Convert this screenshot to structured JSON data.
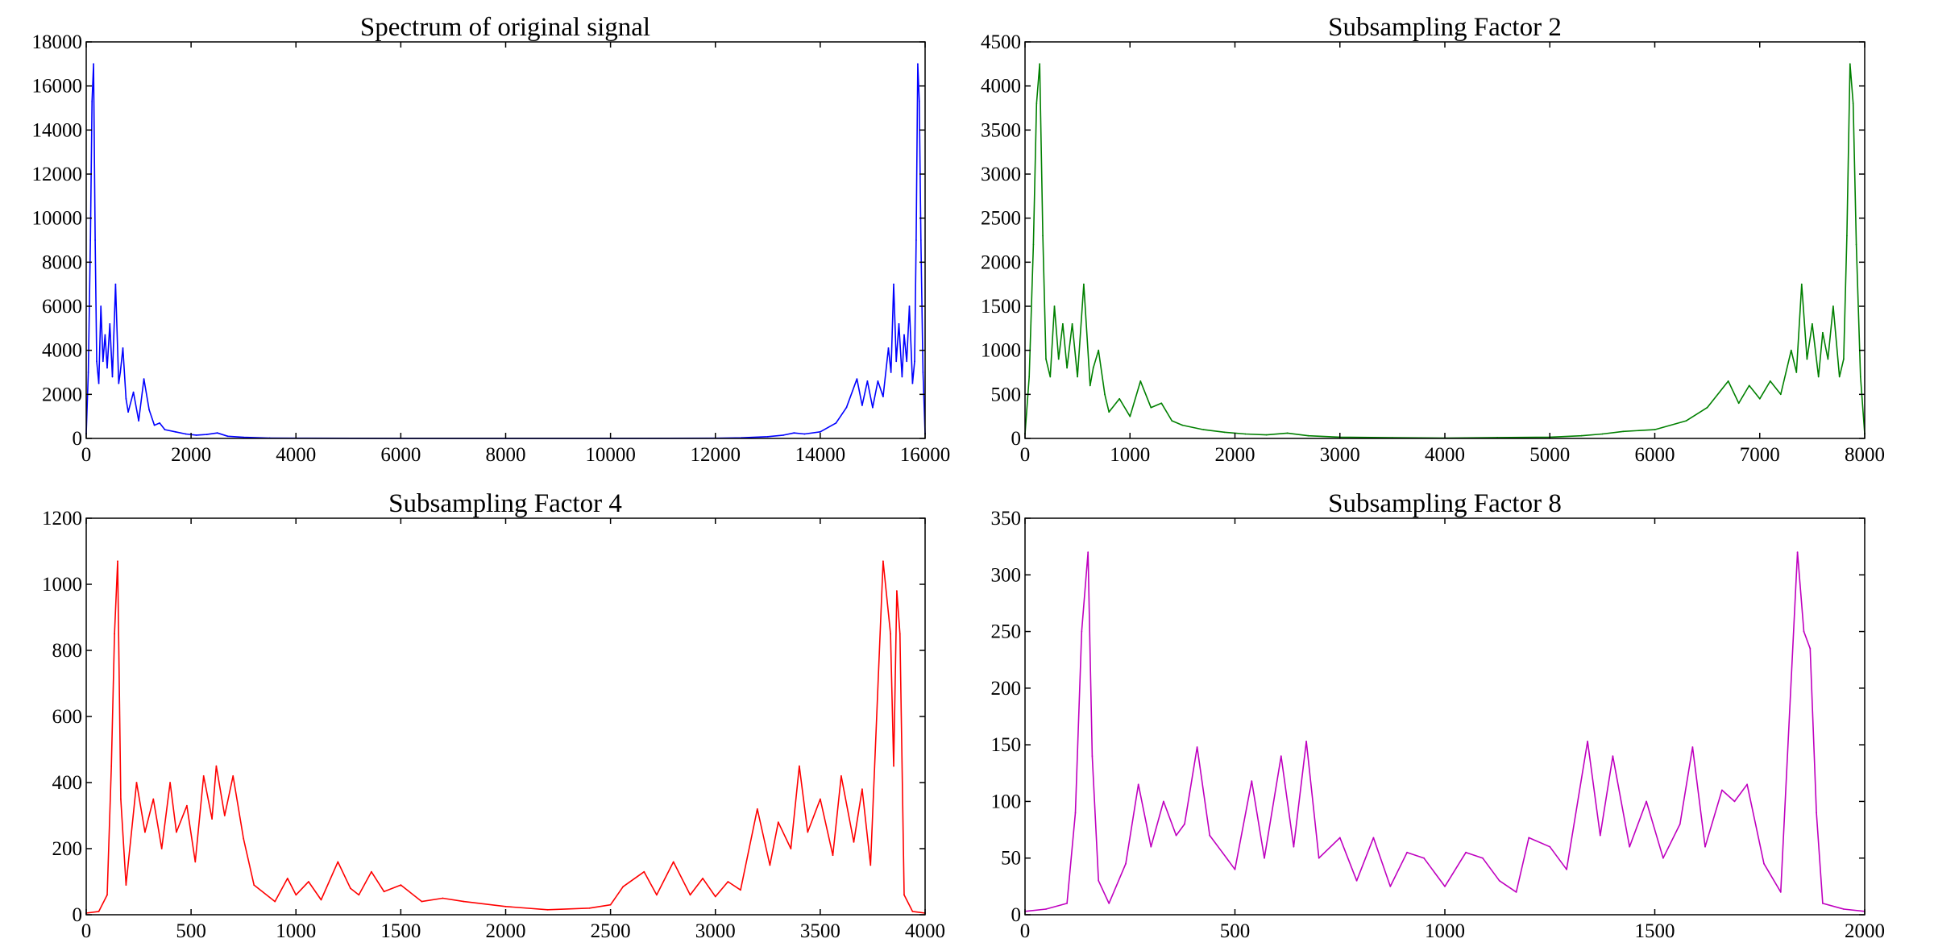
{
  "figure": {
    "layout": "2x2 grid",
    "background": "#ffffff"
  },
  "chart_data": [
    {
      "type": "line",
      "title": "Spectrum of original signal",
      "xlabel": "",
      "ylabel": "",
      "color": "#0000ff",
      "xlim": [
        0,
        16000
      ],
      "ylim": [
        0,
        18000
      ],
      "xticks": [
        "0",
        "2000",
        "4000",
        "6000",
        "8000",
        "10000",
        "12000",
        "14000",
        "16000"
      ],
      "yticks": [
        "0",
        "2000",
        "4000",
        "6000",
        "8000",
        "10000",
        "12000",
        "14000",
        "16000",
        "18000"
      ],
      "grid": false,
      "series": [
        {
          "x": [
            0,
            40,
            80,
            110,
            140,
            170,
            200,
            240,
            280,
            320,
            360,
            400,
            450,
            500,
            560,
            620,
            650,
            700,
            760,
            800,
            900,
            1000,
            1100,
            1200,
            1300,
            1400,
            1500,
            1700,
            1900,
            2100,
            2300,
            2500,
            2700,
            3000,
            3500,
            4000,
            6000,
            8000,
            10000,
            12000,
            12500,
            13000,
            13300,
            13500,
            13700,
            14000,
            14300,
            14500,
            14700,
            14800,
            14900,
            15000,
            15100,
            15200,
            15300,
            15350,
            15400,
            15450,
            15500,
            15560,
            15600,
            15650,
            15700,
            15760,
            15800,
            15830,
            15860,
            15890,
            15920,
            15960,
            16000
          ],
          "y": [
            200,
            3000,
            9000,
            15300,
            17000,
            9000,
            3500,
            2500,
            6000,
            3500,
            4700,
            3200,
            5200,
            2800,
            7000,
            2500,
            3000,
            4100,
            1800,
            1200,
            2100,
            800,
            2700,
            1300,
            600,
            700,
            400,
            300,
            200,
            150,
            180,
            250,
            100,
            50,
            20,
            10,
            5,
            5,
            5,
            10,
            30,
            80,
            150,
            250,
            200,
            300,
            700,
            1400,
            2700,
            1500,
            2600,
            1400,
            2600,
            1900,
            4100,
            3000,
            7000,
            3500,
            5200,
            2800,
            4700,
            3500,
            6000,
            2500,
            3500,
            9000,
            17000,
            15300,
            9000,
            3000,
            200
          ]
        }
      ]
    },
    {
      "type": "line",
      "title": "Subsampling Factor 2",
      "xlabel": "",
      "ylabel": "",
      "color": "#008000",
      "xlim": [
        0,
        8000
      ],
      "ylim": [
        0,
        4500
      ],
      "xticks": [
        "0",
        "1000",
        "2000",
        "3000",
        "4000",
        "5000",
        "6000",
        "7000",
        "8000"
      ],
      "yticks": [
        "0",
        "500",
        "1000",
        "1500",
        "2000",
        "2500",
        "3000",
        "3500",
        "4000",
        "4500"
      ],
      "grid": false,
      "series": [
        {
          "x": [
            0,
            40,
            80,
            110,
            140,
            170,
            200,
            240,
            280,
            320,
            360,
            400,
            450,
            500,
            560,
            620,
            650,
            700,
            760,
            800,
            900,
            1000,
            1100,
            1200,
            1300,
            1400,
            1500,
            1700,
            1900,
            2100,
            2300,
            2500,
            2700,
            3000,
            3500,
            4000,
            4500,
            5000,
            5300,
            5500,
            5700,
            6000,
            6300,
            6500,
            6700,
            6800,
            6900,
            7000,
            7100,
            7200,
            7300,
            7350,
            7400,
            7450,
            7500,
            7560,
            7600,
            7650,
            7700,
            7760,
            7800,
            7830,
            7860,
            7890,
            7920,
            7960,
            8000
          ],
          "y": [
            50,
            700,
            2200,
            3800,
            4250,
            2300,
            900,
            700,
            1500,
            900,
            1300,
            800,
            1300,
            700,
            1750,
            600,
            800,
            1000,
            500,
            300,
            450,
            250,
            650,
            350,
            400,
            200,
            150,
            100,
            70,
            50,
            40,
            60,
            30,
            15,
            8,
            5,
            10,
            15,
            30,
            50,
            80,
            100,
            200,
            350,
            650,
            400,
            600,
            450,
            650,
            500,
            1000,
            750,
            1750,
            900,
            1300,
            700,
            1200,
            900,
            1500,
            700,
            900,
            2300,
            4250,
            3800,
            2200,
            700,
            50
          ]
        }
      ]
    },
    {
      "type": "line",
      "title": "Subsampling Factor 4",
      "xlabel": "",
      "ylabel": "",
      "color": "#ff0000",
      "xlim": [
        0,
        4000
      ],
      "ylim": [
        0,
        1200
      ],
      "xticks": [
        "0",
        "500",
        "1000",
        "1500",
        "2000",
        "2500",
        "3000",
        "3500",
        "4000"
      ],
      "yticks": [
        "0",
        "200",
        "400",
        "600",
        "800",
        "1000",
        "1200"
      ],
      "grid": false,
      "series": [
        {
          "x": [
            0,
            60,
            100,
            120,
            135,
            150,
            165,
            190,
            240,
            280,
            320,
            360,
            400,
            430,
            480,
            520,
            560,
            600,
            620,
            660,
            700,
            750,
            800,
            900,
            960,
            1000,
            1060,
            1120,
            1200,
            1260,
            1300,
            1360,
            1420,
            1500,
            1600,
            1700,
            1800,
            2000,
            2200,
            2400,
            2500,
            2560,
            2660,
            2720,
            2800,
            2880,
            2940,
            3000,
            3060,
            3120,
            3200,
            3260,
            3300,
            3360,
            3400,
            3440,
            3500,
            3560,
            3600,
            3660,
            3700,
            3740,
            3800,
            3835,
            3850,
            3865,
            3880,
            3900,
            3940,
            4000
          ],
          "y": [
            5,
            10,
            60,
            450,
            850,
            1070,
            350,
            90,
            400,
            250,
            350,
            200,
            400,
            250,
            330,
            160,
            420,
            290,
            450,
            300,
            420,
            230,
            90,
            40,
            110,
            60,
            100,
            45,
            160,
            80,
            60,
            130,
            70,
            90,
            40,
            50,
            40,
            25,
            15,
            20,
            30,
            85,
            130,
            60,
            160,
            60,
            110,
            55,
            100,
            75,
            320,
            150,
            280,
            200,
            450,
            250,
            350,
            180,
            420,
            220,
            380,
            150,
            1070,
            850,
            450,
            980,
            850,
            60,
            10,
            5
          ]
        }
      ]
    },
    {
      "type": "line",
      "title": "Subsampling Factor 8",
      "xlabel": "",
      "ylabel": "",
      "color": "#bf00bf",
      "xlim": [
        0,
        2000
      ],
      "ylim": [
        0,
        350
      ],
      "xticks": [
        "0",
        "500",
        "1000",
        "1500",
        "2000"
      ],
      "yticks": [
        "0",
        "50",
        "100",
        "150",
        "200",
        "250",
        "300",
        "350"
      ],
      "grid": false,
      "series": [
        {
          "x": [
            0,
            50,
            100,
            120,
            135,
            150,
            160,
            175,
            200,
            240,
            270,
            300,
            330,
            360,
            380,
            410,
            440,
            470,
            500,
            540,
            570,
            610,
            640,
            670,
            700,
            750,
            790,
            830,
            870,
            910,
            950,
            1000,
            1050,
            1090,
            1130,
            1170,
            1200,
            1250,
            1290,
            1340,
            1370,
            1400,
            1440,
            1480,
            1520,
            1560,
            1590,
            1620,
            1660,
            1690,
            1720,
            1760,
            1800,
            1840,
            1855,
            1870,
            1885,
            1900,
            1950,
            2000
          ],
          "y": [
            3,
            5,
            10,
            90,
            250,
            320,
            140,
            30,
            10,
            45,
            115,
            60,
            100,
            70,
            80,
            148,
            70,
            55,
            40,
            118,
            50,
            140,
            60,
            153,
            50,
            68,
            30,
            68,
            25,
            55,
            50,
            25,
            55,
            50,
            30,
            20,
            68,
            60,
            40,
            153,
            70,
            140,
            60,
            100,
            50,
            80,
            148,
            60,
            110,
            100,
            115,
            45,
            20,
            320,
            250,
            235,
            90,
            10,
            5,
            3
          ]
        }
      ]
    }
  ]
}
